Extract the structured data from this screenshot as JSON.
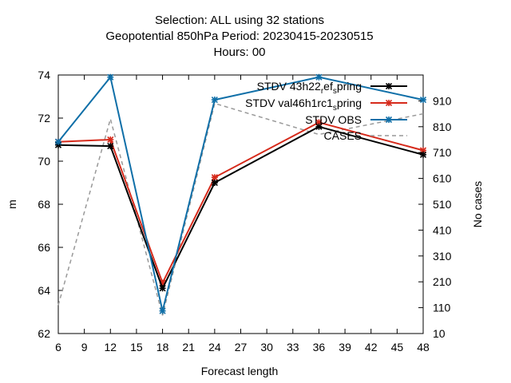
{
  "chart_data": {
    "type": "line",
    "title": [
      "Selection: ALL using    32 stations",
      "Geopotential 850hPa   Period: 20230415-20230515",
      "Hours:  00"
    ],
    "xlabel": "Forecast length",
    "ylabel": "m",
    "y2label": "No cases",
    "xlim": [
      6,
      48
    ],
    "ylim": [
      62,
      74
    ],
    "y2lim": [
      10,
      1010
    ],
    "x_ticks": [
      6,
      9,
      12,
      15,
      18,
      21,
      24,
      27,
      30,
      33,
      36,
      39,
      42,
      45,
      48
    ],
    "y_ticks": [
      62,
      64,
      66,
      68,
      70,
      72,
      74
    ],
    "y2_ticks": [
      10,
      110,
      210,
      310,
      410,
      510,
      610,
      710,
      810,
      910
    ],
    "legend_position": "top-right",
    "series": [
      {
        "name": "STDV 43h22_ref_spring",
        "name_parts": [
          "STDV 43h22",
          "r",
          "ef",
          "s",
          "pring"
        ],
        "color": "#000000",
        "marker": "x",
        "axis": "left",
        "x": [
          6,
          12,
          18,
          24,
          36,
          48
        ],
        "values": [
          70.75,
          70.7,
          64.1,
          69.0,
          71.6,
          70.3
        ]
      },
      {
        "name": "STDV val46h1rc1_spring",
        "name_parts": [
          "STDV val46h1rc1",
          "",
          "",
          "s",
          "pring"
        ],
        "color": "#d62a1b",
        "marker": "x",
        "axis": "left",
        "x": [
          6,
          12,
          18,
          24,
          36,
          48
        ],
        "values": [
          70.9,
          71.0,
          64.35,
          69.25,
          71.8,
          70.5
        ]
      },
      {
        "name": "STDV OBS",
        "color": "#0f6fa8",
        "marker": "x",
        "axis": "left",
        "x": [
          6,
          12,
          18,
          24,
          36,
          48
        ],
        "values": [
          70.9,
          73.9,
          63.05,
          72.85,
          73.9,
          72.85
        ]
      },
      {
        "name": "CASES",
        "color": "#999999",
        "dash": "dashed",
        "axis": "right",
        "x": [
          6,
          12,
          18,
          24,
          36,
          48
        ],
        "values": [
          120,
          840,
          80,
          900,
          780,
          860
        ]
      }
    ]
  }
}
